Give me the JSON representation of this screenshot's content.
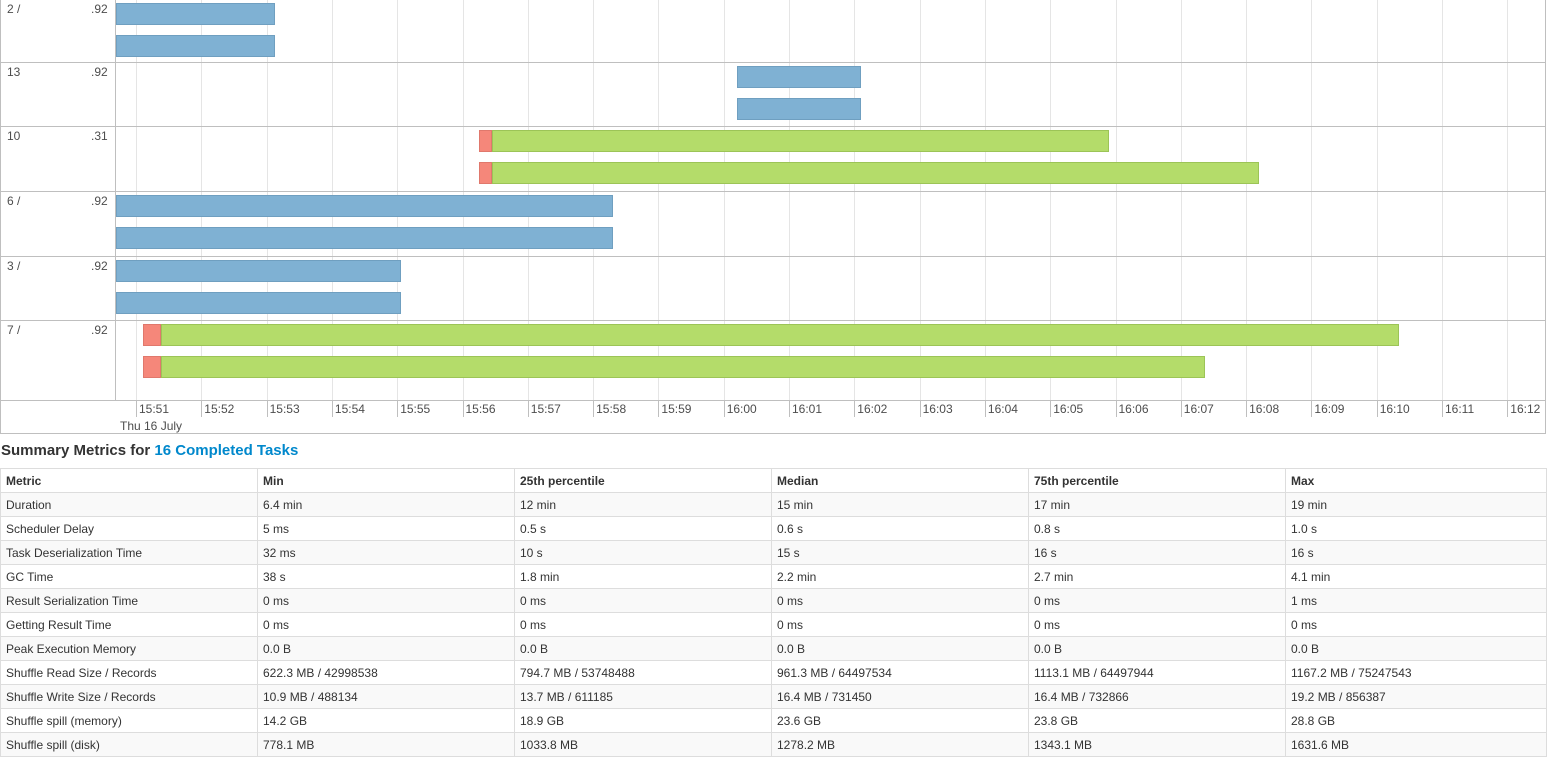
{
  "timeline": {
    "rows": [
      {
        "label": "2 /",
        "sub": ".92"
      },
      {
        "label": "13",
        "sub": ".92"
      },
      {
        "label": "10",
        "sub": ".31"
      },
      {
        "label": "6 /",
        "sub": ".92"
      },
      {
        "label": "3 /",
        "sub": ".92"
      },
      {
        "label": "7 /",
        "sub": ".92"
      }
    ],
    "time_ticks": [
      "15:51",
      "15:52",
      "15:53",
      "15:54",
      "15:55",
      "15:56",
      "15:57",
      "15:58",
      "15:59",
      "16:00",
      "16:01",
      "16:02",
      "16:03",
      "16:04",
      "16:05",
      "16:06",
      "16:07",
      "16:08",
      "16:09",
      "16:10",
      "16:11",
      "16:12"
    ],
    "date_label": "Thu 16 July",
    "axis_start_minute": "15:50.7",
    "colors": {
      "running": "#7fb1d3",
      "computing": "#b4dc6a",
      "delay": "#f5877a"
    }
  },
  "summary": {
    "heading_prefix": "Summary Metrics for ",
    "heading_link": "16 Completed Tasks",
    "columns": [
      "Metric",
      "Min",
      "25th percentile",
      "Median",
      "75th percentile",
      "Max"
    ],
    "rows": [
      [
        "Duration",
        "6.4 min",
        "12 min",
        "15 min",
        "17 min",
        "19 min"
      ],
      [
        "Scheduler Delay",
        "5 ms",
        "0.5 s",
        "0.6 s",
        "0.8 s",
        "1.0 s"
      ],
      [
        "Task Deserialization Time",
        "32 ms",
        "10 s",
        "15 s",
        "16 s",
        "16 s"
      ],
      [
        "GC Time",
        "38 s",
        "1.8 min",
        "2.2 min",
        "2.7 min",
        "4.1 min"
      ],
      [
        "Result Serialization Time",
        "0 ms",
        "0 ms",
        "0 ms",
        "0 ms",
        "1 ms"
      ],
      [
        "Getting Result Time",
        "0 ms",
        "0 ms",
        "0 ms",
        "0 ms",
        "0 ms"
      ],
      [
        "Peak Execution Memory",
        "0.0 B",
        "0.0 B",
        "0.0 B",
        "0.0 B",
        "0.0 B"
      ],
      [
        "Shuffle Read Size / Records",
        "622.3 MB / 42998538",
        "794.7 MB / 53748488",
        "961.3 MB / 64497534",
        "1113.1 MB / 64497944",
        "1167.2 MB / 75247543"
      ],
      [
        "Shuffle Write Size / Records",
        "10.9 MB / 488134",
        "13.7 MB / 611185",
        "16.4 MB / 731450",
        "16.4 MB / 732866",
        "19.2 MB / 856387"
      ],
      [
        "Shuffle spill (memory)",
        "14.2 GB",
        "18.9 GB",
        "23.6 GB",
        "23.8 GB",
        "28.8 GB"
      ],
      [
        "Shuffle spill (disk)",
        "778.1 MB",
        "1033.8 MB",
        "1278.2 MB",
        "1343.1 MB",
        "1631.6 MB"
      ]
    ]
  }
}
